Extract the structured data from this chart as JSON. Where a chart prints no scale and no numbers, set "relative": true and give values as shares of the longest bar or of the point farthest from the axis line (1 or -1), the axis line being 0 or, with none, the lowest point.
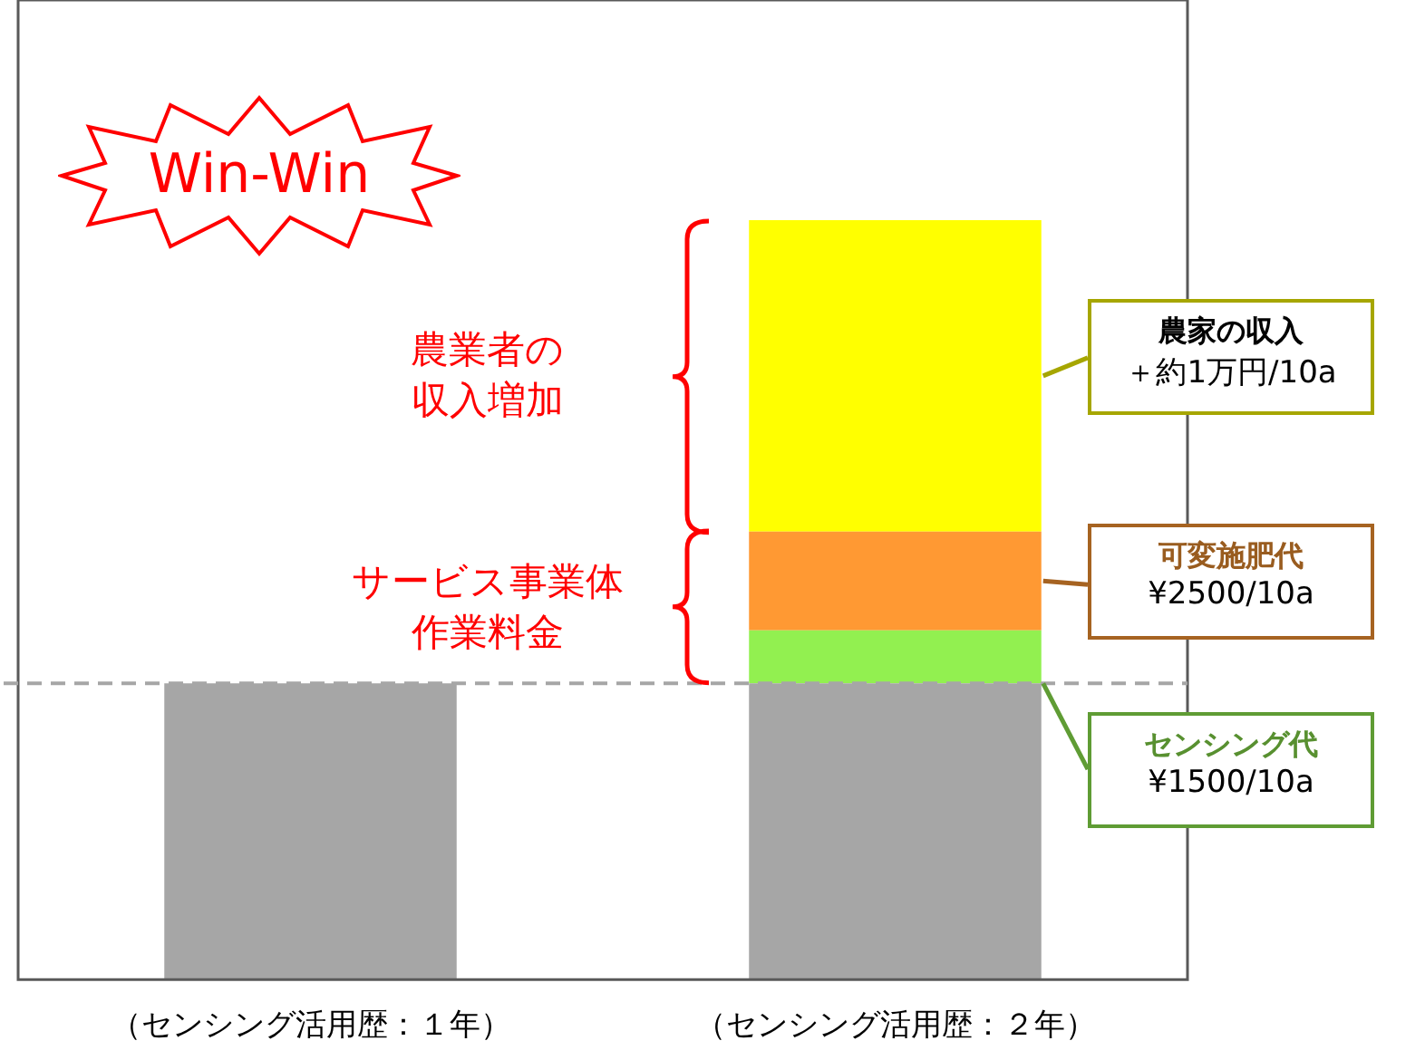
{
  "chart_data": {
    "type": "bar",
    "relative": true,
    "stacked": true,
    "legend": false,
    "grid": false,
    "tick_labels": "x",
    "categories": [
      "（センシング活用歴：１年）",
      "（センシング活用歴：２年）"
    ],
    "series": [
      {
        "color": "#a6a6a6",
        "values": [
          0.39,
          0.39
        ]
      },
      {
        "name": "センシング代",
        "color": "#92f050",
        "values": [
          null,
          0.07
        ]
      },
      {
        "name": "可変施肥代",
        "color": "#ff9933",
        "values": [
          null,
          0.13
        ]
      },
      {
        "name": "農家の収入",
        "color": "#ffff00",
        "values": [
          null,
          0.41
        ]
      }
    ],
    "ref_lines": [
      {
        "axis": "y",
        "value": 0.39,
        "color": "#a6a6a6",
        "line_style": "dashed"
      }
    ],
    "annotations": [
      "Win-Win",
      "農業者の収入増加",
      "サービス事業体作業料金",
      "¥1500/10a",
      "¥2500/10a",
      "＋約1万円/10a"
    ]
  }
}
